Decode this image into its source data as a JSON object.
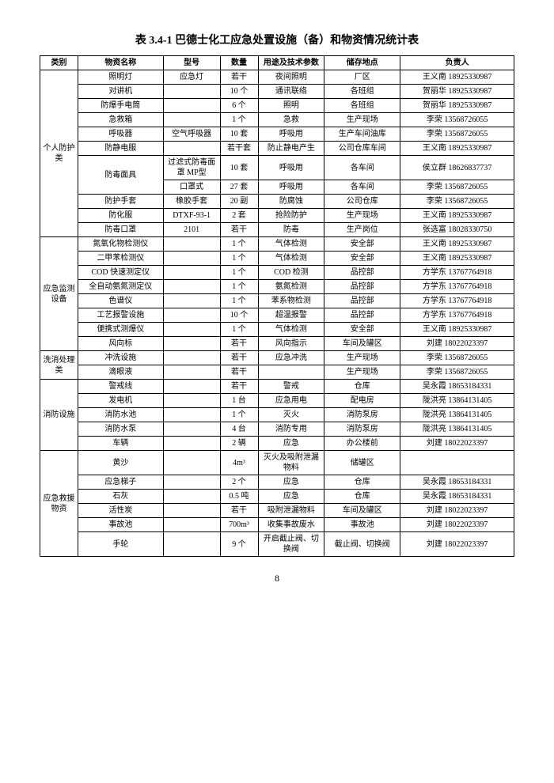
{
  "title": "表 3.4-1  巴德士化工应急处置设施（备）和物资情况统计表",
  "pageNumber": "8",
  "headers": {
    "category": "类别",
    "name": "物资名称",
    "model": "型号",
    "qty": "数量",
    "use": "用途及技术参数",
    "location": "储存地点",
    "responsible": "负责人"
  },
  "groups": [
    {
      "category": "个人防护类",
      "rows": [
        {
          "name": "照明灯",
          "model": "应急灯",
          "qty": "若干",
          "use": "夜间照明",
          "loc": "厂区",
          "resp": "王义南 18925330987"
        },
        {
          "name": "对讲机",
          "model": "",
          "qty": "10 个",
          "use": "通讯联络",
          "loc": "各班组",
          "resp": "贺丽华 18925330987"
        },
        {
          "name": "防爆手电筒",
          "model": "",
          "qty": "6 个",
          "use": "照明",
          "loc": "各班组",
          "resp": "贺丽华 18925330987"
        },
        {
          "name": "急救箱",
          "model": "",
          "qty": "1 个",
          "use": "急救",
          "loc": "生产现场",
          "resp": "李荣 13568726055"
        },
        {
          "name": "呼吸器",
          "model": "空气呼吸器",
          "qty": "10 套",
          "use": "呼吸用",
          "loc": "生产车间油库",
          "resp": "李荣 13568726055"
        },
        {
          "name": "防静电服",
          "model": "",
          "qty": "若干套",
          "use": "防止静电产生",
          "loc": "公司仓库车间",
          "resp": "王义南 18925330987"
        },
        {
          "name": "防毒面具",
          "model": "过滤式防毒面罩 MP型",
          "qty": "10 套",
          "use": "呼吸用",
          "loc": "各车间",
          "resp": "侯立群 18626837737",
          "nameRowspan": 2
        },
        {
          "name": "",
          "model": "口罩式",
          "qty": "27 套",
          "use": "呼吸用",
          "loc": "各车间",
          "resp": "李荣 13568726055",
          "skipName": true
        },
        {
          "name": "防护手套",
          "model": "橡胶手套",
          "qty": "20 副",
          "use": "防腐蚀",
          "loc": "公司仓库",
          "resp": "李荣 13568726055"
        },
        {
          "name": "防化服",
          "model": "DTXF-93-1",
          "qty": "2 套",
          "use": "抢险防护",
          "loc": "生产现场",
          "resp": "王义南 18925330987"
        },
        {
          "name": "防毒口罩",
          "model": "2101",
          "qty": "若干",
          "use": "防毒",
          "loc": "生产岗位",
          "resp": "张选富 18028330750"
        }
      ]
    },
    {
      "category": "应急监测设备",
      "rows": [
        {
          "name": "氮氧化物检测仪",
          "model": "",
          "qty": "1 个",
          "use": "气体检测",
          "loc": "安全部",
          "resp": "王义南 18925330987"
        },
        {
          "name": "二甲苯检测仪",
          "model": "",
          "qty": "1 个",
          "use": "气体检测",
          "loc": "安全部",
          "resp": "王义南 18925330987"
        },
        {
          "name": "COD 快速测定仪",
          "model": "",
          "qty": "1 个",
          "use": "COD 检测",
          "loc": "品控部",
          "resp": "方学东 13767764918"
        },
        {
          "name": "全自动氨氮测定仪",
          "model": "",
          "qty": "1 个",
          "use": "氨氮检测",
          "loc": "品控部",
          "resp": "方学东 13767764918"
        },
        {
          "name": "色谱仪",
          "model": "",
          "qty": "1 个",
          "use": "苯系物检测",
          "loc": "品控部",
          "resp": "方学东 13767764918"
        },
        {
          "name": "工艺报警设施",
          "model": "",
          "qty": "10 个",
          "use": "超温报警",
          "loc": "品控部",
          "resp": "方学东 13767764918"
        },
        {
          "name": "便携式测爆仪",
          "model": "",
          "qty": "1 个",
          "use": "气体检测",
          "loc": "安全部",
          "resp": "王义南 18925330987"
        },
        {
          "name": "风向标",
          "model": "",
          "qty": "若干",
          "use": "风向指示",
          "loc": "车间及罐区",
          "resp": "刘建 18022023397"
        }
      ]
    },
    {
      "category": "洗消处理类",
      "rows": [
        {
          "name": "冲洗设施",
          "model": "",
          "qty": "若干",
          "use": "应急冲洗",
          "loc": "生产现场",
          "resp": "李荣 13568726055"
        },
        {
          "name": "滴眼液",
          "model": "",
          "qty": "若干",
          "use": "",
          "loc": "生产现场",
          "resp": "李荣 13568726055"
        }
      ]
    },
    {
      "category": "消防设施",
      "rows": [
        {
          "name": "警戒线",
          "model": "",
          "qty": "若干",
          "use": "警戒",
          "loc": "仓库",
          "resp": "吴永霞 18653184331"
        },
        {
          "name": "发电机",
          "model": "",
          "qty": "1 台",
          "use": "应急用电",
          "loc": "配电房",
          "resp": "陇洪亮 13864131405"
        },
        {
          "name": "消防水池",
          "model": "",
          "qty": "1 个",
          "use": "灭火",
          "loc": "消防泵房",
          "resp": "陇洪亮 13864131405"
        },
        {
          "name": "消防水泵",
          "model": "",
          "qty": "4 台",
          "use": "消防专用",
          "loc": "消防泵房",
          "resp": "陇洪亮 13864131405"
        },
        {
          "name": "车辆",
          "model": "",
          "qty": "2 辆",
          "use": "应急",
          "loc": "办公楼前",
          "resp": "刘建 18022023397"
        }
      ]
    },
    {
      "category": "应急救援物资",
      "rows": [
        {
          "name": "黄沙",
          "model": "",
          "qty": "4m³",
          "use": "灭火及吸附泄漏物料",
          "loc": "储罐区",
          "resp": ""
        },
        {
          "name": "应急梯子",
          "model": "",
          "qty": "2 个",
          "use": "应急",
          "loc": "仓库",
          "resp": "吴永霞 18653184331"
        },
        {
          "name": "石灰",
          "model": "",
          "qty": "0.5 吨",
          "use": "应急",
          "loc": "仓库",
          "resp": "吴永霞 18653184331"
        },
        {
          "name": "活性炭",
          "model": "",
          "qty": "若干",
          "use": "吸附泄漏物料",
          "loc": "车间及罐区",
          "resp": "刘建 18022023397"
        },
        {
          "name": "事故池",
          "model": "",
          "qty": "700m³",
          "use": "收集事故废水",
          "loc": "事故池",
          "resp": "刘建 18022023397"
        },
        {
          "name": "手轮",
          "model": "",
          "qty": "9 个",
          "use": "开启截止阀、切换阀",
          "loc": "截止阀、切换阀",
          "resp": "刘建 18022023397"
        }
      ]
    }
  ]
}
